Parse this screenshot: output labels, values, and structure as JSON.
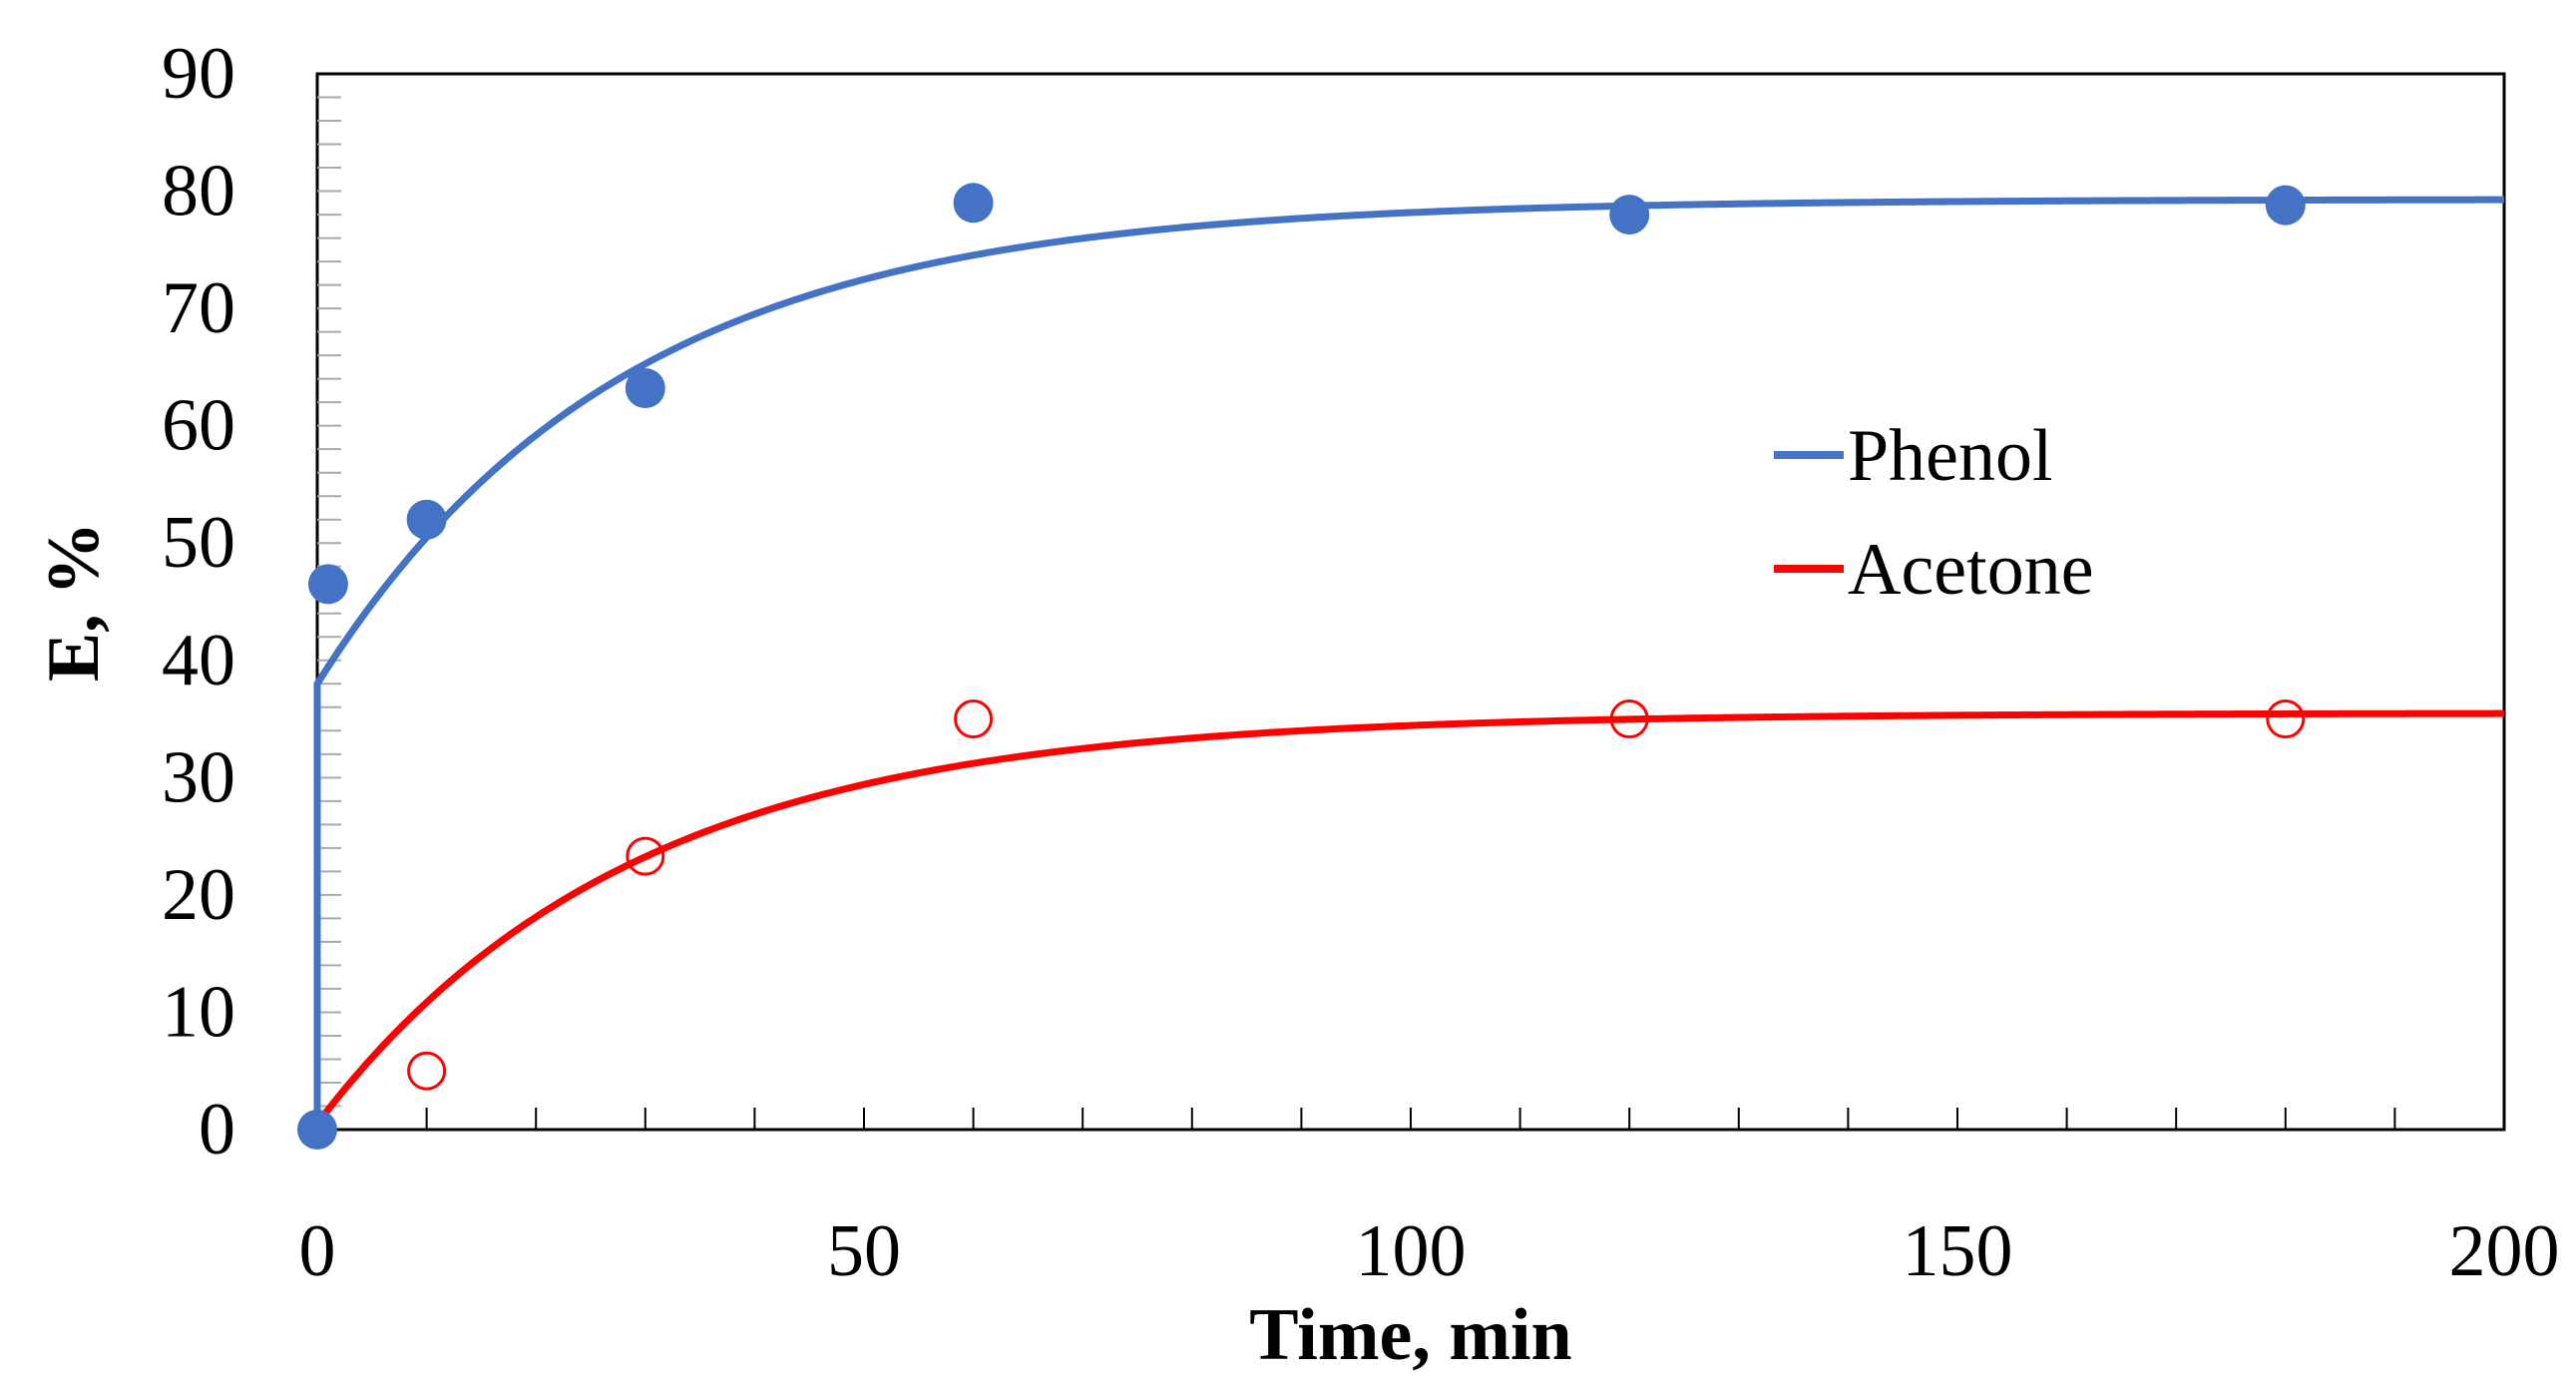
{
  "chart_data": {
    "type": "scatter",
    "title": "",
    "xlabel": "Time, min",
    "ylabel": "E, %",
    "xlim": [
      0,
      200
    ],
    "ylim": [
      0,
      90
    ],
    "xticks": [
      0,
      50,
      100,
      150,
      200
    ],
    "yticks": [
      0,
      10,
      20,
      30,
      40,
      50,
      60,
      70,
      80,
      90
    ],
    "legend_position": "center-right",
    "series": [
      {
        "name": "Phenol",
        "color": "#4472C4",
        "marker": "filled-circle",
        "points": [
          {
            "x": 0,
            "y": 0
          },
          {
            "x": 1,
            "y": 46.5
          },
          {
            "x": 10,
            "y": 52
          },
          {
            "x": 30,
            "y": 63.2
          },
          {
            "x": 60,
            "y": 79
          },
          {
            "x": 120,
            "y": 78
          },
          {
            "x": 180,
            "y": 78.8
          }
        ],
        "fit": {
          "model": "exponential",
          "start_x": 0,
          "jump_to": 38,
          "plateau": 79.3,
          "rate_per_min": 0.036
        }
      },
      {
        "name": "Acetone",
        "color": "#FF0000",
        "marker": "open-circle",
        "points": [
          {
            "x": 10,
            "y": 5
          },
          {
            "x": 30,
            "y": 23.3
          },
          {
            "x": 60,
            "y": 35
          },
          {
            "x": 120,
            "y": 35
          },
          {
            "x": 180,
            "y": 35
          }
        ],
        "fit": {
          "model": "exponential",
          "start_x": 0,
          "start_y": 0.5,
          "plateau": 35.5,
          "rate_per_min": 0.035
        }
      }
    ]
  }
}
